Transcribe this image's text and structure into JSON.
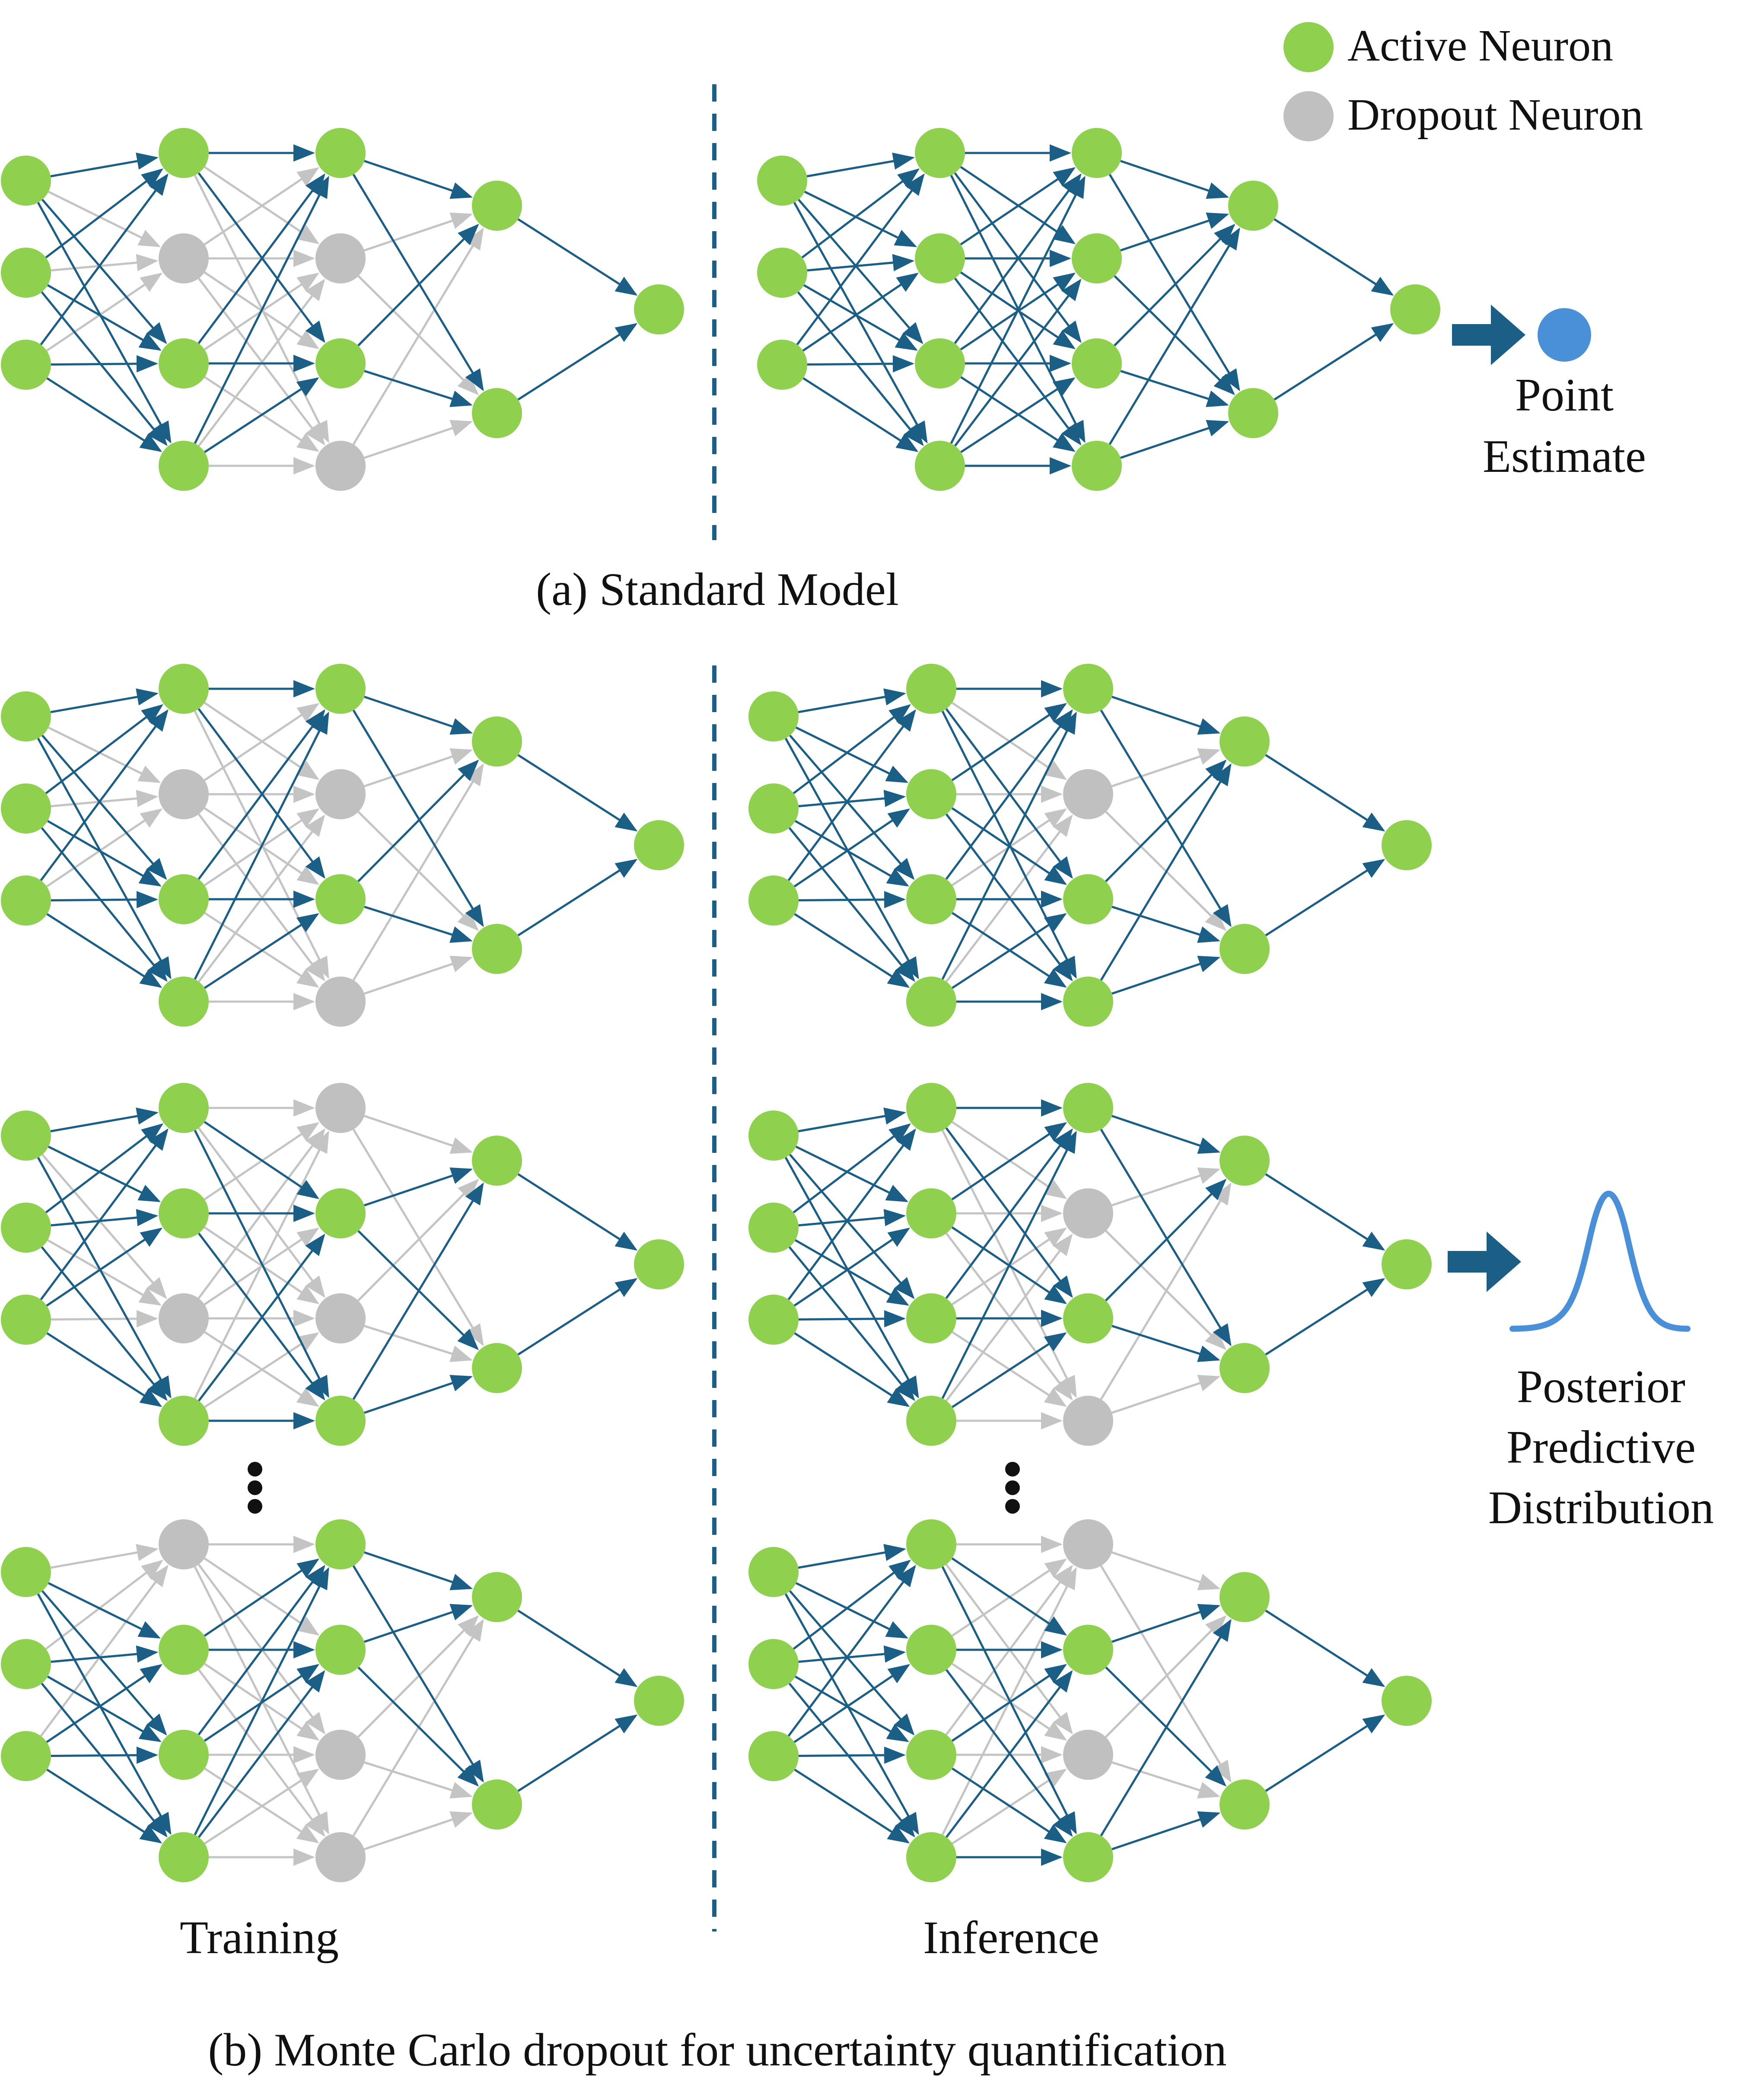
{
  "legend": {
    "active_label": "Active Neuron",
    "dropout_label": "Dropout Neuron"
  },
  "captions": {
    "standard": "(a) Standard Model",
    "mc": "(b) Monte Carlo dropout for uncertainty quantification",
    "training": "Training",
    "inference": "Inference"
  },
  "outputs": {
    "point_estimate": [
      "Point",
      "Estimate"
    ],
    "posterior": [
      "Posterior",
      "Predictive",
      "Distribution"
    ]
  },
  "colors": {
    "active_neuron": "#8fd14f",
    "dropout_neuron": "#c0c0c0",
    "active_edge": "#1b5e86",
    "dropout_edge": "#c4c4c4",
    "divider": "#1b5e86",
    "output_arrow": "#1b5e86",
    "point_estimate": "#4a90d9",
    "distribution_curve": "#4a90d9"
  },
  "network": {
    "layers": [
      3,
      4,
      4,
      2,
      1
    ]
  },
  "panels": [
    {
      "id": "standard-training",
      "dropout": [
        [],
        [
          1
        ],
        [
          1,
          3
        ],
        [],
        []
      ]
    },
    {
      "id": "standard-inference",
      "dropout": [
        [],
        [],
        [],
        [],
        []
      ]
    },
    {
      "id": "mc-training-1",
      "dropout": [
        [],
        [
          1
        ],
        [
          1,
          3
        ],
        [],
        []
      ]
    },
    {
      "id": "mc-inference-1",
      "dropout": [
        [],
        [],
        [
          1
        ],
        [],
        []
      ]
    },
    {
      "id": "mc-training-2",
      "dropout": [
        [],
        [
          2
        ],
        [
          0,
          2
        ],
        [],
        []
      ]
    },
    {
      "id": "mc-inference-2",
      "dropout": [
        [],
        [],
        [
          1,
          3
        ],
        [],
        []
      ]
    },
    {
      "id": "mc-training-3",
      "dropout": [
        [],
        [
          0
        ],
        [
          2,
          3
        ],
        [],
        []
      ]
    },
    {
      "id": "mc-inference-3",
      "dropout": [
        [],
        [],
        [
          0,
          2
        ],
        [],
        []
      ]
    }
  ]
}
